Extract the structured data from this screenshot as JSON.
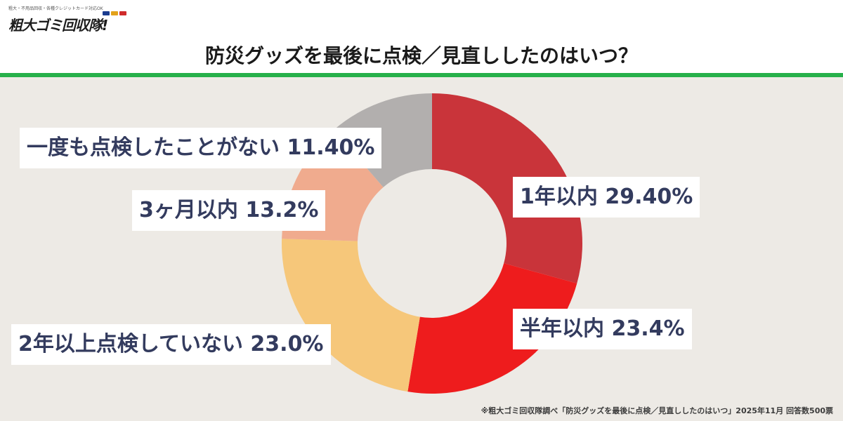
{
  "logo": {
    "tagline": "粗大・不用品回収・各種クレジットカード対応OK",
    "name": "粗大ゴミ回収隊!"
  },
  "title": "防災グッズを最後に点検／見直ししたのはいつ？",
  "footnote": "※粗大ゴミ回収隊調べ「防災グッズを最後に点検／見直ししたのはいつ」2025年11月 回答数500票",
  "chart_data": {
    "type": "pie",
    "title": "防災グッズを最後に点検／見直ししたのはいつ？",
    "slices": [
      {
        "label": "1年以内 29.40%",
        "value": 29.4,
        "color": "#c9343a"
      },
      {
        "label": "半年以内 23.4%",
        "value": 23.4,
        "color": "#ee1c1d"
      },
      {
        "label": "2年以上点検していない 23.0%",
        "value": 23.0,
        "color": "#f6c77a"
      },
      {
        "label": "3ヶ月以内 13.2%",
        "value": 13.2,
        "color": "#f0ab8e"
      },
      {
        "label": "一度も点検したことがない 11.40%",
        "value": 11.4,
        "color": "#b2afae"
      }
    ],
    "donut": true,
    "start": "12 o'clock, clockwise"
  }
}
